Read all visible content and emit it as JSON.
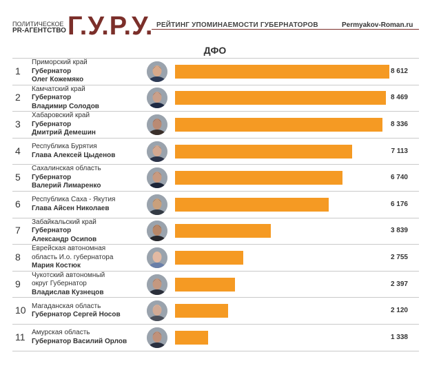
{
  "header": {
    "agency_line1": "ПОЛИТИЧЕСКОЕ",
    "agency_line2": "PR-АГЕНТСТВО",
    "logo": "Г.У.Р.У.",
    "title": "РЕЙТИНГ УПОМИНАЕМОСТИ ГУБЕРНАТОРОВ",
    "site": "Permyakov-Roman.ru",
    "accent_color": "#7b2f2a"
  },
  "chart_data": {
    "type": "bar",
    "orientation": "horizontal",
    "title": "ДФО",
    "bar_color": "#f59a23",
    "xlim": [
      0,
      8612
    ],
    "grid": false,
    "rows": [
      {
        "rank": "1",
        "lines": [
          "Приморский край",
          "Губернатор",
          "Олег Кожемяко"
        ],
        "bold": [
          1,
          2
        ],
        "value": 8612,
        "label": "8 612"
      },
      {
        "rank": "2",
        "lines": [
          "Камчатский край",
          "Губернатор",
          "Владимир Солодов"
        ],
        "bold": [
          1,
          2
        ],
        "value": 8469,
        "label": "8 469"
      },
      {
        "rank": "3",
        "lines": [
          "Хабаровский край",
          "Губернатор",
          "Дмитрий Демешин"
        ],
        "bold": [
          1,
          2
        ],
        "value": 8336,
        "label": "8 336"
      },
      {
        "rank": "4",
        "lines": [
          "Республика Бурятия",
          "Глава Алексей Цыденов"
        ],
        "bold": [
          1
        ],
        "value": 7113,
        "label": "7 113"
      },
      {
        "rank": "5",
        "lines": [
          "Сахалинская область",
          "Губернатор",
          "Валерий Лимаренко"
        ],
        "bold": [
          1,
          2
        ],
        "value": 6740,
        "label": "6 740"
      },
      {
        "rank": "6",
        "lines": [
          "Республика Саха - Якутия",
          "Глава Айсен Николаев"
        ],
        "bold": [
          1
        ],
        "value": 6176,
        "label": "6 176"
      },
      {
        "rank": "7",
        "lines": [
          "Забайкальский край",
          "Губернатор",
          "Александр Осипов"
        ],
        "bold": [
          1,
          2
        ],
        "value": 3839,
        "label": "3 839"
      },
      {
        "rank": "8",
        "lines": [
          "Еврейская автономная",
          "область И.о. губернатора",
          "Мария Костюк"
        ],
        "bold": [
          2
        ],
        "value": 2755,
        "label": "2 755"
      },
      {
        "rank": "9",
        "lines": [
          "Чукотский автономный",
          "округ Губернатор",
          "Владислав Кузнецов"
        ],
        "bold": [
          2
        ],
        "value": 2397,
        "label": "2 397"
      },
      {
        "rank": "10",
        "lines": [
          "Магаданская область",
          "Губернатор Сергей Носов"
        ],
        "bold": [
          1
        ],
        "value": 2120,
        "label": "2 120"
      },
      {
        "rank": "11",
        "lines": [
          "Амурская область",
          "Губернатор Василий Орлов"
        ],
        "bold": [
          1
        ],
        "value": 1338,
        "label": "1 338"
      }
    ]
  }
}
